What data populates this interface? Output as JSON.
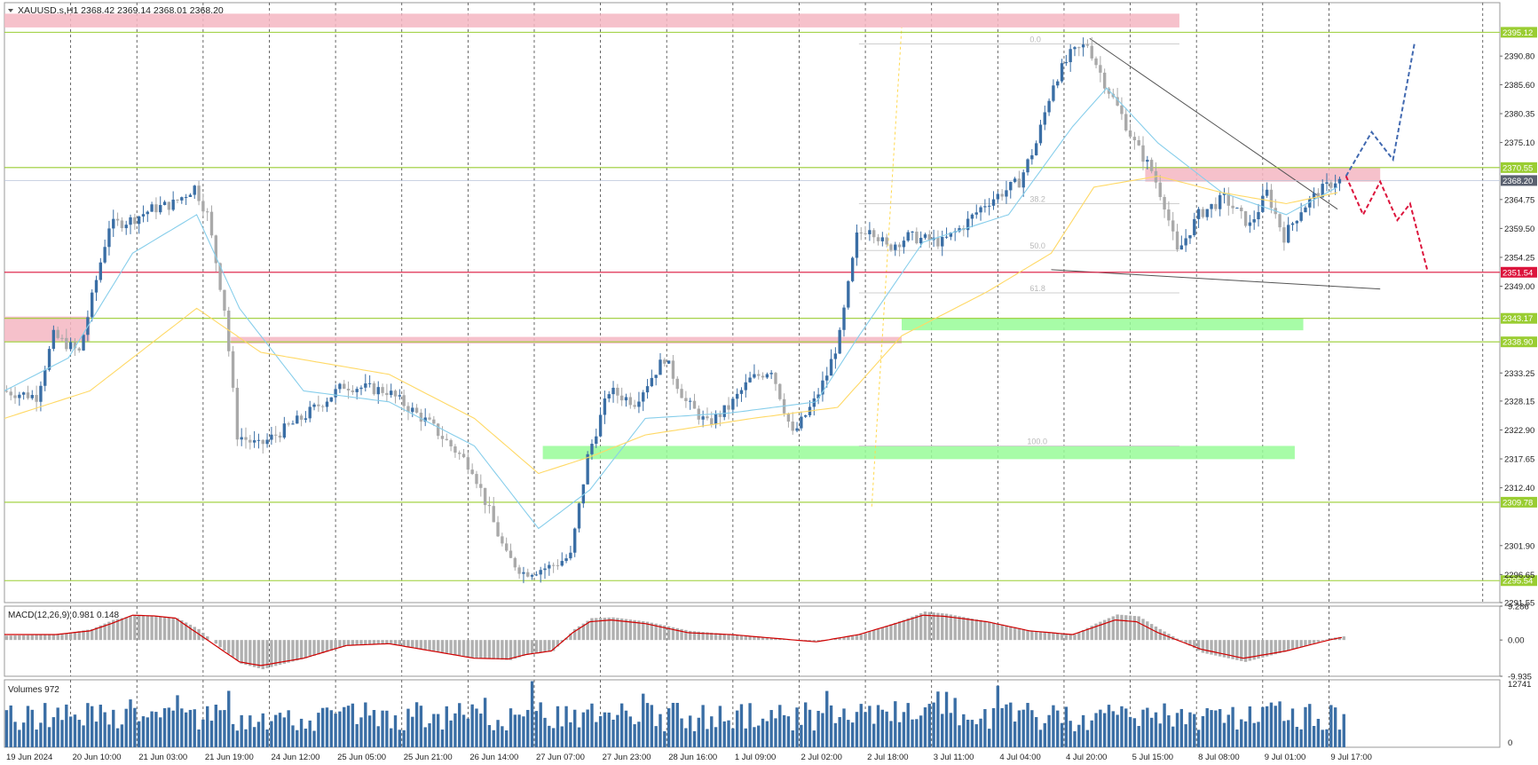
{
  "header": {
    "symbol_info": "XAUUSD.s,H1  2368.42 2369.14 2368.01 2368.20"
  },
  "colors": {
    "bull": "#3a6ea5",
    "bear": "#a9a9a9",
    "ema_fast": "#87ceeb",
    "ema_slow": "#ffd966",
    "level_line": "#9acd32",
    "support_red": "#dc143c",
    "zone_red": "#f4b6c2",
    "zone_green": "#98fb98",
    "forecast_up": "#4169b0",
    "forecast_down": "#dc143c",
    "macd_signal": "#d00000",
    "macd_hist": "#b0b0b0",
    "volume": "#3a6ea5"
  },
  "chart_data": [
    {
      "type": "candlestick",
      "name": "price",
      "ylim": [
        2291.55,
        2400.5
      ],
      "x_labels": [
        "19 Jun 2024",
        "20 Jun 10:00",
        "21 Jun 03:00",
        "21 Jun 19:00",
        "24 Jun 12:00",
        "25 Jun 05:00",
        "25 Jun 21:00",
        "26 Jun 14:00",
        "27 Jun 07:00",
        "27 Jun 23:00",
        "28 Jun 16:00",
        "1 Jul 09:00",
        "2 Jul 02:00",
        "2 Jul 18:00",
        "3 Jul 11:00",
        "4 Jul 04:00",
        "4 Jul 20:00",
        "5 Jul 15:00",
        "8 Jul 08:00",
        "9 Jul 01:00",
        "9 Jul 17:00"
      ],
      "y_ticks": [
        2390.8,
        2385.6,
        2380.35,
        2375.1,
        2364.75,
        2359.5,
        2354.25,
        2349.0,
        2333.25,
        2328.15,
        2322.9,
        2317.65,
        2312.4,
        2301.9,
        2296.65,
        2291.55
      ],
      "bars_total": 225,
      "price_path": [
        [
          0,
          2330
        ],
        [
          8,
          2329
        ],
        [
          12,
          2340
        ],
        [
          18,
          2337
        ],
        [
          25,
          2360
        ],
        [
          30,
          2361
        ],
        [
          35,
          2363
        ],
        [
          40,
          2364
        ],
        [
          45,
          2367
        ],
        [
          48,
          2362
        ],
        [
          52,
          2345
        ],
        [
          55,
          2322
        ],
        [
          60,
          2320
        ],
        [
          70,
          2325
        ],
        [
          80,
          2331
        ],
        [
          90,
          2330
        ],
        [
          100,
          2324
        ],
        [
          110,
          2316
        ],
        [
          118,
          2300
        ],
        [
          122,
          2297
        ],
        [
          128,
          2298
        ],
        [
          133,
          2300
        ],
        [
          137,
          2318
        ],
        [
          142,
          2330
        ],
        [
          148,
          2328
        ],
        [
          155,
          2336
        ],
        [
          160,
          2328
        ],
        [
          165,
          2324
        ],
        [
          170,
          2327
        ],
        [
          175,
          2332
        ],
        [
          180,
          2334
        ],
        [
          185,
          2322
        ],
        [
          190,
          2328
        ],
        [
          193,
          2333
        ],
        [
          196,
          2340
        ],
        [
          200,
          2358
        ],
        [
          203,
          2360
        ],
        [
          207,
          2356
        ],
        [
          212,
          2358
        ],
        [
          220,
          2357
        ],
        [
          225,
          2360
        ],
        [
          230,
          2364
        ],
        [
          238,
          2368
        ],
        [
          242,
          2375
        ],
        [
          246,
          2386
        ],
        [
          250,
          2391
        ],
        [
          254,
          2393
        ],
        [
          258,
          2386
        ],
        [
          262,
          2380
        ],
        [
          265,
          2375
        ],
        [
          269,
          2370
        ],
        [
          272,
          2364
        ],
        [
          275,
          2355
        ],
        [
          280,
          2362
        ],
        [
          286,
          2365
        ],
        [
          292,
          2360
        ],
        [
          296,
          2366
        ],
        [
          300,
          2358
        ],
        [
          304,
          2363
        ],
        [
          308,
          2366
        ],
        [
          312,
          2368.2
        ]
      ],
      "ema_fast_path": [
        [
          0,
          2330
        ],
        [
          15,
          2336
        ],
        [
          30,
          2355
        ],
        [
          45,
          2362
        ],
        [
          55,
          2345
        ],
        [
          70,
          2330
        ],
        [
          90,
          2328
        ],
        [
          110,
          2320
        ],
        [
          125,
          2305
        ],
        [
          137,
          2312
        ],
        [
          150,
          2325
        ],
        [
          170,
          2326
        ],
        [
          190,
          2328
        ],
        [
          200,
          2340
        ],
        [
          215,
          2357
        ],
        [
          235,
          2362
        ],
        [
          250,
          2378
        ],
        [
          258,
          2385
        ],
        [
          270,
          2375
        ],
        [
          285,
          2366
        ],
        [
          300,
          2362
        ],
        [
          312,
          2367
        ]
      ],
      "ema_slow_path": [
        [
          0,
          2325
        ],
        [
          20,
          2330
        ],
        [
          45,
          2345
        ],
        [
          60,
          2337
        ],
        [
          90,
          2333
        ],
        [
          110,
          2325
        ],
        [
          125,
          2315
        ],
        [
          137,
          2318
        ],
        [
          150,
          2322
        ],
        [
          175,
          2325
        ],
        [
          195,
          2327
        ],
        [
          210,
          2340
        ],
        [
          230,
          2348
        ],
        [
          245,
          2355
        ],
        [
          255,
          2367
        ],
        [
          270,
          2369
        ],
        [
          285,
          2366
        ],
        [
          300,
          2364
        ],
        [
          312,
          2366
        ]
      ],
      "levels": [
        {
          "price": 2395.12,
          "label": "2395.12",
          "kind": "green"
        },
        {
          "price": 2370.55,
          "label": "2370.55",
          "kind": "green"
        },
        {
          "price": 2368.2,
          "label": "2368.20",
          "kind": "current"
        },
        {
          "price": 2351.54,
          "label": "2351.54",
          "kind": "red"
        },
        {
          "price": 2343.17,
          "label": "2343.17",
          "kind": "green"
        },
        {
          "price": 2338.9,
          "label": "2338.90",
          "kind": "green"
        },
        {
          "price": 2309.78,
          "label": "2309.78",
          "kind": "green"
        },
        {
          "price": 2295.54,
          "label": "2295.54",
          "kind": "green"
        }
      ],
      "fib_labels": [
        "0.0",
        "38.2",
        "50.0",
        "61.8",
        "100.0"
      ],
      "fib_prices": [
        2393,
        2364,
        2355.5,
        2347.8,
        2320
      ],
      "zones": [
        {
          "x0": 0,
          "x1": 275,
          "y0": 2398.5,
          "y1": 2396.0,
          "kind": "red"
        },
        {
          "x0": 0,
          "x1": 20,
          "y0": 2343.5,
          "y1": 2339.0,
          "kind": "red"
        },
        {
          "x0": 53,
          "x1": 210,
          "y0": 2339.8,
          "y1": 2338.6,
          "kind": "red"
        },
        {
          "x0": 267,
          "x1": 322,
          "y0": 2370.5,
          "y1": 2368.0,
          "kind": "red"
        },
        {
          "x0": 210,
          "x1": 304,
          "y0": 2343.2,
          "y1": 2341.0,
          "kind": "green"
        },
        {
          "x0": 126,
          "x1": 302,
          "y0": 2320.0,
          "y1": 2317.6,
          "kind": "green"
        }
      ],
      "forecast_up": [
        [
          314,
          2369
        ],
        [
          320,
          2377
        ],
        [
          325,
          2372
        ],
        [
          330,
          2393
        ]
      ],
      "forecast_down": [
        [
          314,
          2369
        ],
        [
          318,
          2362
        ],
        [
          322,
          2368
        ],
        [
          326,
          2361
        ],
        [
          329,
          2364
        ],
        [
          333,
          2352
        ]
      ]
    },
    {
      "type": "line",
      "name": "macd",
      "title": "MACD(12,26,9) 0.981 0.148",
      "ylim": [
        -9.935,
        9.286
      ],
      "y_ticks": [
        9.286,
        0.0,
        -9.935
      ],
      "x": [
        0,
        12,
        20,
        25,
        30,
        35,
        40,
        45,
        50,
        55,
        60,
        70,
        80,
        90,
        100,
        110,
        118,
        122,
        128,
        133,
        137,
        142,
        150,
        160,
        170,
        180,
        190,
        200,
        210,
        215,
        220,
        230,
        240,
        250,
        255,
        260,
        265,
        270,
        280,
        290,
        300,
        310,
        313
      ],
      "hist": [
        1.2,
        1.5,
        3.0,
        5.5,
        6.8,
        6.5,
        6.0,
        3.0,
        -2.0,
        -6.5,
        -8.0,
        -5.0,
        -1.5,
        -1.0,
        -3.0,
        -5.0,
        -5.5,
        -4.0,
        -3.0,
        3.0,
        6.0,
        6.2,
        5.0,
        2.5,
        1.5,
        0.5,
        -0.5,
        1.5,
        5.5,
        7.8,
        7.2,
        5.0,
        2.5,
        1.5,
        4.5,
        7.0,
        6.5,
        3.0,
        -3.5,
        -6.0,
        -3.0,
        0.5,
        1.0
      ],
      "signal": [
        1.5,
        1.5,
        2.5,
        4.5,
        6.8,
        6.6,
        6.0,
        2.0,
        -2.0,
        -6.0,
        -7.0,
        -5.0,
        -1.5,
        -1.0,
        -3.0,
        -5.0,
        -5.2,
        -4.0,
        -3.0,
        2.0,
        5.0,
        5.5,
        4.5,
        2.0,
        1.5,
        0.5,
        -0.5,
        1.5,
        5.0,
        6.8,
        6.5,
        5.0,
        2.5,
        1.5,
        3.5,
        5.5,
        5.0,
        2.0,
        -2.5,
        -5.0,
        -3.0,
        0.0,
        0.7
      ]
    },
    {
      "type": "bar",
      "name": "volume",
      "title": "Volumes 972",
      "ylim": [
        0,
        12741
      ],
      "y_ticks": [
        12741,
        0
      ]
    }
  ]
}
